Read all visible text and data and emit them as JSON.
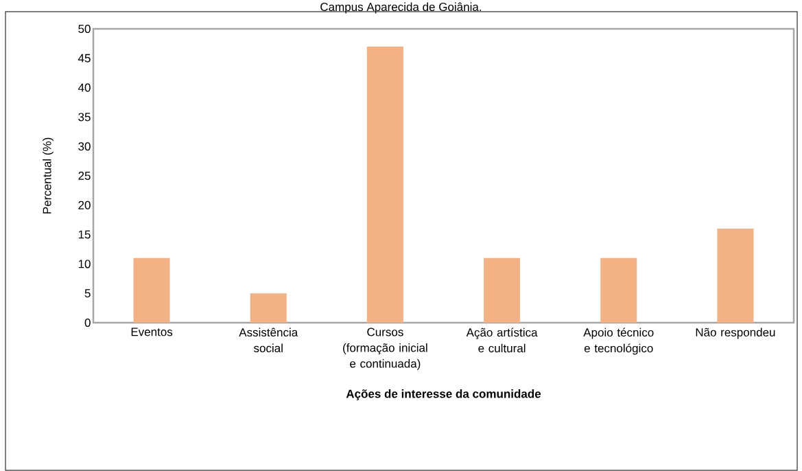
{
  "chart_data": {
    "type": "bar",
    "title": "Campus Aparecida de Goiânia.",
    "xlabel": "Ações de interesse da comunidade",
    "ylabel": "Percentual (%)",
    "categories": [
      "Eventos",
      "Assistência social",
      "Cursos (formação inicial e continuada)",
      "Ação artística e cultural",
      "Apoio técnico e tecnológico",
      "Não respondeu"
    ],
    "values": [
      11,
      5,
      47,
      11,
      11,
      16
    ],
    "color": "#f4b183",
    "ylim": [
      0,
      50
    ],
    "yticks": [
      0,
      5,
      10,
      15,
      20,
      25,
      30,
      35,
      40,
      45,
      50
    ]
  }
}
